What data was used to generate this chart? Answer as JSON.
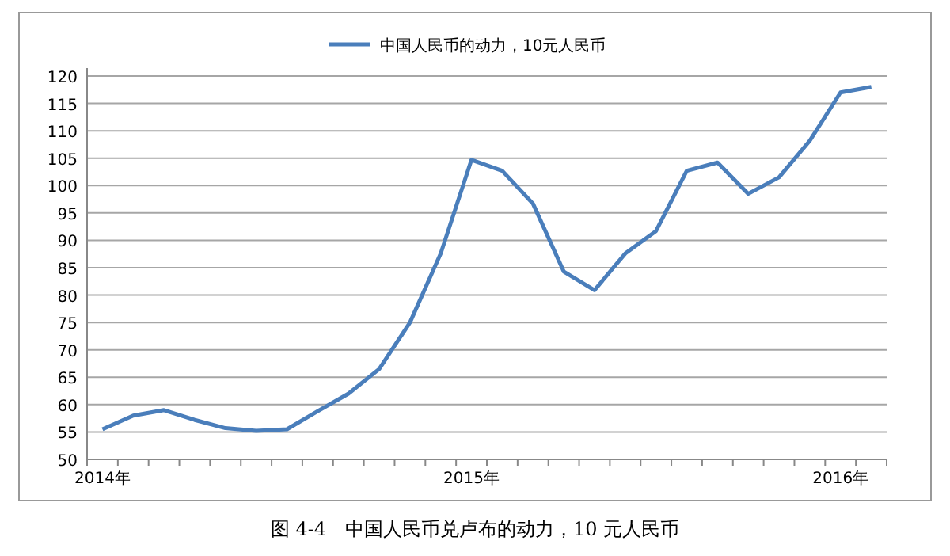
{
  "chart_data": {
    "type": "line",
    "categories": [
      "2014年",
      null,
      null,
      null,
      null,
      null,
      null,
      null,
      null,
      null,
      null,
      null,
      "2015年",
      null,
      null,
      null,
      null,
      null,
      null,
      null,
      null,
      null,
      null,
      null,
      "2016年",
      null
    ],
    "series": [
      {
        "name": "中国人民币的动力，10元人民币",
        "color": "#4a7ebb",
        "values": [
          55.5,
          58,
          59,
          57.2,
          55.7,
          55.2,
          55.5,
          58.8,
          62,
          66.5,
          75,
          87.6,
          104.7,
          102.7,
          96.7,
          84.3,
          80.9,
          87.6,
          91.7,
          102.7,
          104.2,
          98.5,
          101.5,
          108.2,
          117,
          118
        ]
      }
    ],
    "ylim": [
      50,
      120
    ],
    "yticks": [
      50,
      55,
      60,
      65,
      70,
      75,
      80,
      85,
      90,
      95,
      100,
      105,
      110,
      115,
      120
    ],
    "grid": "y",
    "legend": "top",
    "marker": "none",
    "line_style": "solid",
    "annotations": [
      "图 4-4　中国人民币兑卢布的动力，10 元人民币"
    ]
  }
}
